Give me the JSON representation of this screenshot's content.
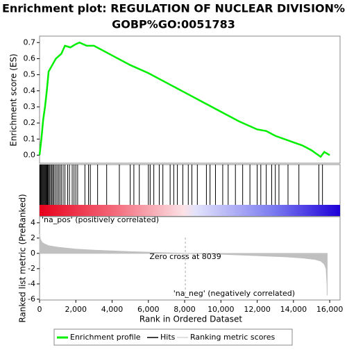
{
  "chart_data": [
    {
      "type": "line",
      "title": [
        "Enrichment plot: REGULATION OF NUCLEAR DIVISION%",
        "GOBP%GO:0051783"
      ],
      "ylabel": "Enrichment score (ES)",
      "xlim": [
        0,
        16570
      ],
      "ylim": [
        -0.05,
        0.74
      ],
      "yticks": [
        {
          "value": 0,
          "label": "0.0"
        },
        0.1,
        0.2,
        0.3,
        0.4,
        0.5,
        0.6,
        0.7
      ],
      "series": [
        {
          "name": "Enrichment profile",
          "color": "#00ee00",
          "x": [
            0,
            100,
            200,
            300,
            400,
            500,
            700,
            900,
            1200,
            1400,
            1700,
            2000,
            2200,
            2600,
            3000,
            4000,
            5000,
            6000,
            7000,
            8000,
            9000,
            10000,
            11000,
            12000,
            12500,
            13000,
            14000,
            14500,
            15000,
            15500,
            15700,
            16000
          ],
          "values": [
            0,
            0.1,
            0.22,
            0.3,
            0.4,
            0.52,
            0.56,
            0.6,
            0.63,
            0.68,
            0.67,
            0.69,
            0.7,
            0.68,
            0.68,
            0.62,
            0.56,
            0.51,
            0.45,
            0.39,
            0.33,
            0.27,
            0.21,
            0.16,
            0.15,
            0.12,
            0.08,
            0.06,
            0.03,
            -0.01,
            0.02,
            0
          ]
        }
      ]
    },
    {
      "type": "hits",
      "xlim": [
        0,
        16570
      ],
      "series": [
        {
          "name": "Hits",
          "color": "#000000",
          "x": [
            20,
            60,
            100,
            140,
            180,
            220,
            260,
            300,
            340,
            380,
            420,
            460,
            500,
            560,
            620,
            680,
            740,
            800,
            880,
            960,
            1040,
            1120,
            1200,
            1300,
            1400,
            1550,
            1650,
            1800,
            1900,
            2000,
            2100,
            2500,
            2700,
            2800,
            3200,
            3700,
            4400,
            5000,
            5200,
            5500,
            6000,
            6100,
            6300,
            6600,
            6800,
            7200,
            7400,
            7600,
            7900,
            8200,
            8400,
            8700,
            9200,
            9400,
            9700,
            10100,
            10400,
            10800,
            11200,
            11600,
            12000,
            12200,
            12500,
            12800,
            13000,
            13200,
            13700,
            14300,
            15400,
            15600
          ]
        }
      ]
    },
    {
      "type": "area",
      "xlabel": "Rank in Ordered Dataset",
      "ylabel": "Ranked list metric (PreRanked)",
      "xlim": [
        0,
        16570
      ],
      "ylim": [
        -6.1,
        4.8
      ],
      "xticks": [
        0,
        {
          "value": 2000,
          "label": "2,000"
        },
        {
          "value": 4000,
          "label": "4,000"
        },
        {
          "value": 6000,
          "label": "6,000"
        },
        {
          "value": 8000,
          "label": "8,000"
        },
        {
          "value": 10000,
          "label": "10,000"
        },
        {
          "value": 12000,
          "label": "12,000"
        },
        {
          "value": 14000,
          "label": "14,000"
        },
        {
          "value": 16000,
          "label": "16,000"
        }
      ],
      "yticks": [
        4,
        2,
        0,
        -2,
        -4,
        -6
      ],
      "zero_cross": 8039,
      "annotations": [
        "'na_pos' (positively correlated)",
        "Zero cross at 8039",
        "'na_neg' (negatively correlated)"
      ],
      "series": [
        {
          "name": "Ranking metric scores",
          "color": "#c0c0c0",
          "x": [
            0,
            50,
            150,
            300,
            500,
            1000,
            2000,
            3000,
            5000,
            8039,
            10000,
            12000,
            13500,
            14500,
            15200,
            15500,
            15700,
            15800,
            15850,
            15860
          ],
          "values": [
            2.5,
            1.8,
            1.4,
            1.2,
            1.0,
            0.8,
            0.55,
            0.42,
            0.22,
            0,
            -0.12,
            -0.3,
            -0.45,
            -0.6,
            -0.8,
            -1.0,
            -1.4,
            -2.0,
            -4.0,
            -5.5
          ]
        }
      ]
    }
  ]
}
